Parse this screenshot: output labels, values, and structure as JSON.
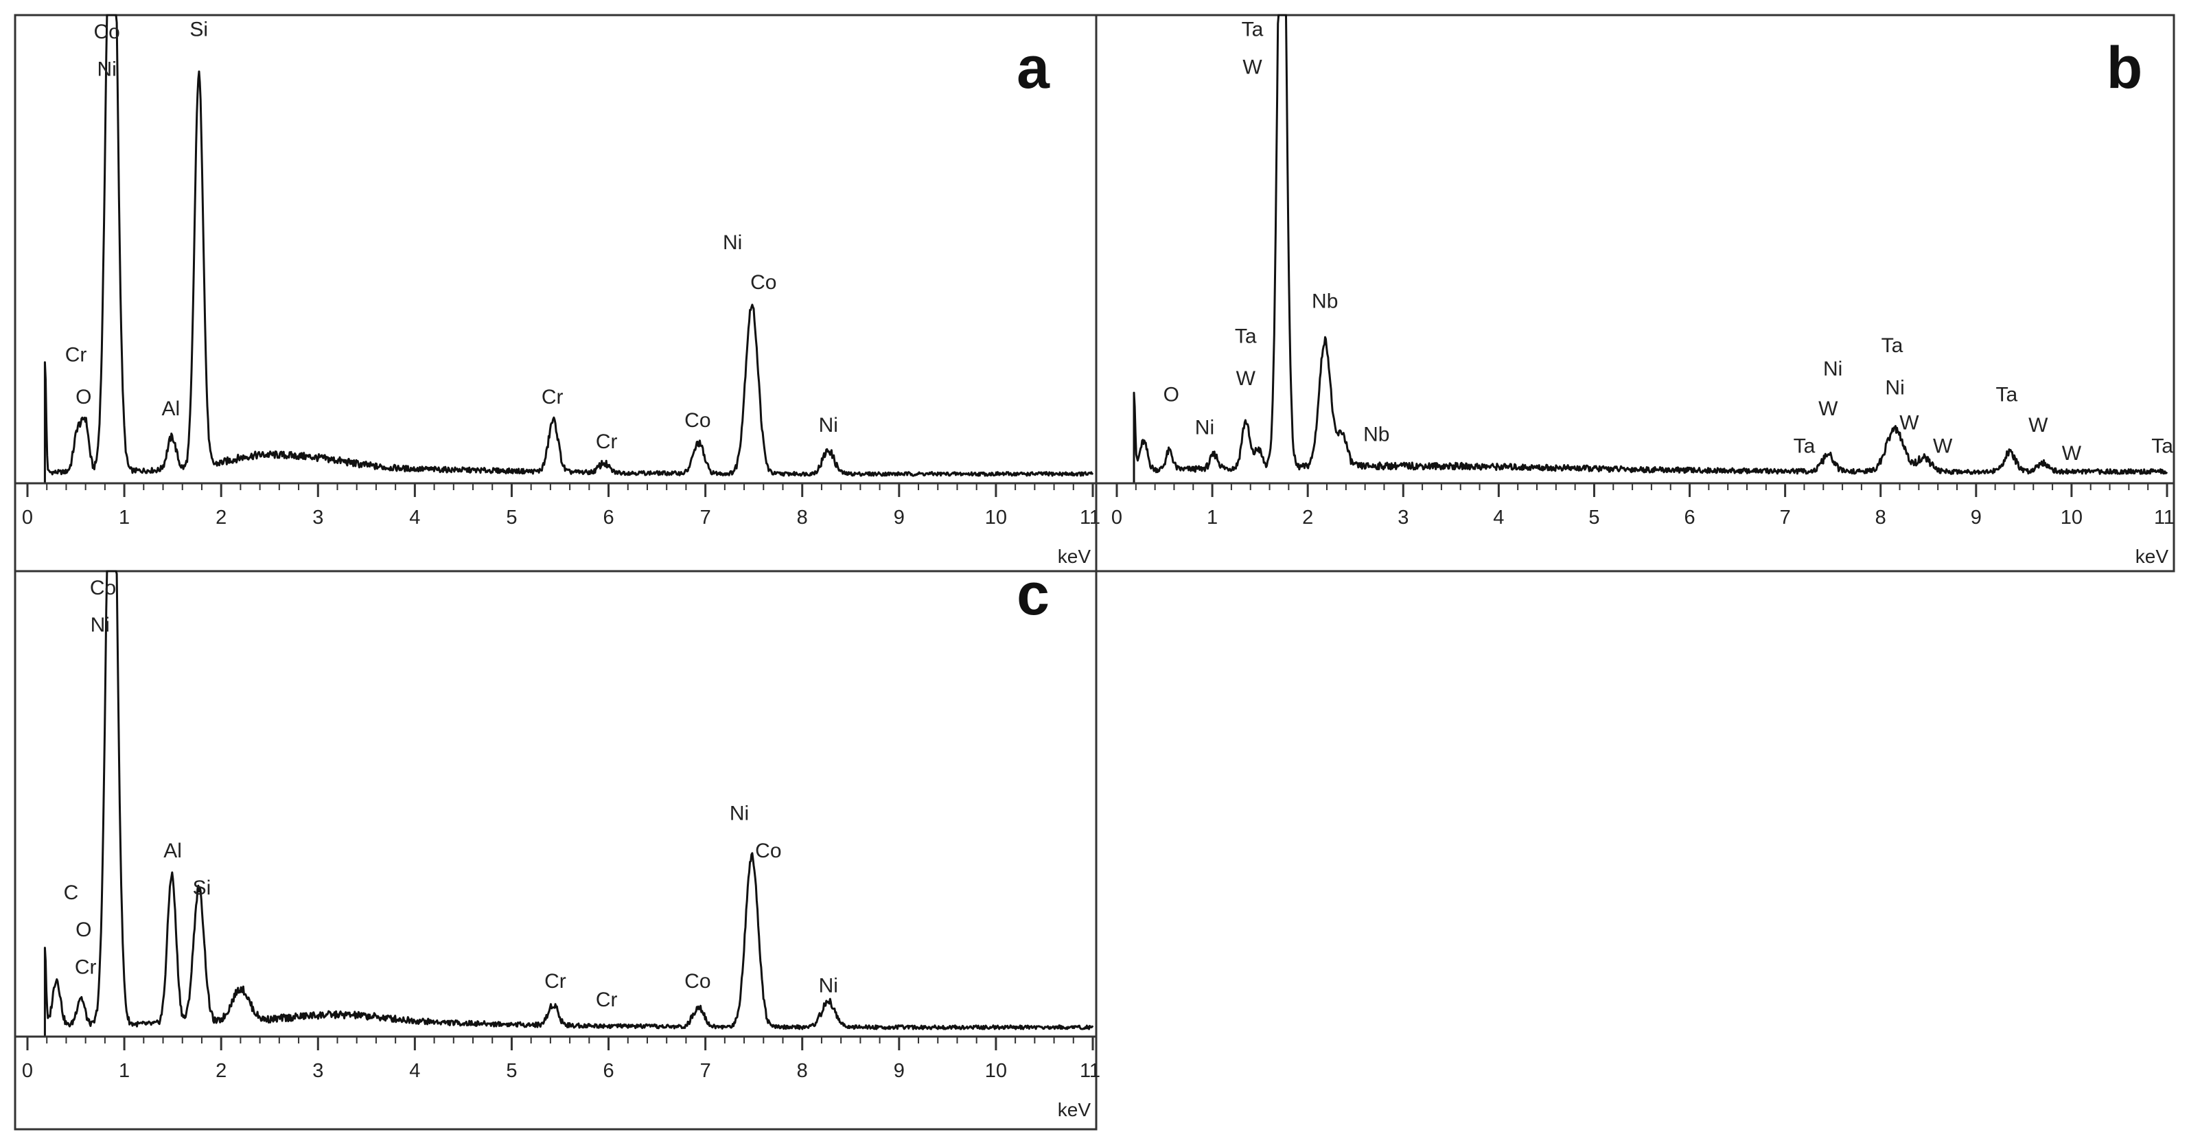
{
  "chart_data": [
    {
      "type": "line",
      "panel_letter": "a",
      "x_unit_label": "keV",
      "xlim": [
        0,
        11
      ],
      "x_ticks": [
        "0",
        "1",
        "2",
        "3",
        "4",
        "5",
        "6",
        "7",
        "8",
        "9",
        "10",
        "11"
      ],
      "y_scale": "relative counts (0 = baseline, 100 = top of frame)",
      "grid": false,
      "spectrum_start_kev": 0.18,
      "spectrum_end_kev": 11,
      "baseline_counts": 2,
      "peaks": [
        {
          "x": 0.18,
          "h": 24,
          "w": 0.012
        },
        {
          "x": 0.52,
          "h": 9,
          "w": 0.04
        },
        {
          "x": 0.6,
          "h": 10,
          "w": 0.035
        },
        {
          "x": 0.87,
          "h": 150,
          "w": 0.055
        },
        {
          "x": 1.49,
          "h": 7,
          "w": 0.045
        },
        {
          "x": 1.77,
          "h": 84,
          "w": 0.045
        },
        {
          "x": 2.3,
          "h": 2,
          "w": 0.3
        },
        {
          "x": 2.9,
          "h": 2.2,
          "w": 0.4
        },
        {
          "x": 5.43,
          "h": 11,
          "w": 0.05
        },
        {
          "x": 5.95,
          "h": 2,
          "w": 0.05
        },
        {
          "x": 6.93,
          "h": 6.5,
          "w": 0.055
        },
        {
          "x": 7.48,
          "h": 36,
          "w": 0.065
        },
        {
          "x": 8.27,
          "h": 5,
          "w": 0.06
        }
      ],
      "peak_labels": [
        {
          "text": "Co",
          "x": 0.82,
          "y": 95
        },
        {
          "text": "Ni",
          "x": 0.82,
          "y": 87
        },
        {
          "text": "Si",
          "x": 1.77,
          "y": 95.5
        },
        {
          "text": "Cr",
          "x": 0.5,
          "y": 26
        },
        {
          "text": "O",
          "x": 0.58,
          "y": 17
        },
        {
          "text": "Al",
          "x": 1.48,
          "y": 14.5
        },
        {
          "text": "Ni",
          "x": 7.28,
          "y": 50
        },
        {
          "text": "Co",
          "x": 7.6,
          "y": 41.5
        },
        {
          "text": "Cr",
          "x": 5.42,
          "y": 17
        },
        {
          "text": "Cr",
          "x": 5.98,
          "y": 7.5
        },
        {
          "text": "Co",
          "x": 6.92,
          "y": 12
        },
        {
          "text": "Ni",
          "x": 8.27,
          "y": 11
        }
      ]
    },
    {
      "type": "line",
      "panel_letter": "b",
      "x_unit_label": "keV",
      "xlim": [
        0,
        11
      ],
      "x_ticks": [
        "0",
        "1",
        "2",
        "3",
        "4",
        "5",
        "6",
        "7",
        "8",
        "9",
        "10",
        "11"
      ],
      "y_scale": "relative counts (0 = baseline, 100 = top of frame)",
      "grid": false,
      "spectrum_start_kev": 0.18,
      "spectrum_end_kev": 11,
      "baseline_counts": 2.5,
      "peaks": [
        {
          "x": 0.18,
          "h": 17,
          "w": 0.012
        },
        {
          "x": 0.28,
          "h": 6,
          "w": 0.04
        },
        {
          "x": 0.55,
          "h": 4,
          "w": 0.035
        },
        {
          "x": 1.02,
          "h": 3,
          "w": 0.04
        },
        {
          "x": 1.35,
          "h": 10,
          "w": 0.04
        },
        {
          "x": 1.48,
          "h": 4,
          "w": 0.04
        },
        {
          "x": 1.73,
          "h": 150,
          "w": 0.045
        },
        {
          "x": 2.18,
          "h": 27,
          "w": 0.06
        },
        {
          "x": 2.36,
          "h": 7,
          "w": 0.05
        },
        {
          "x": 7.45,
          "h": 3.5,
          "w": 0.06
        },
        {
          "x": 8.15,
          "h": 9,
          "w": 0.09
        },
        {
          "x": 8.45,
          "h": 3,
          "w": 0.07
        },
        {
          "x": 9.35,
          "h": 4,
          "w": 0.06
        },
        {
          "x": 9.7,
          "h": 2,
          "w": 0.06
        }
      ],
      "peak_labels": [
        {
          "text": "Ta",
          "x": 1.42,
          "y": 95.5
        },
        {
          "text": "W",
          "x": 1.42,
          "y": 87.5
        },
        {
          "text": "Nb",
          "x": 2.18,
          "y": 37.5
        },
        {
          "text": "Ta",
          "x": 1.35,
          "y": 30
        },
        {
          "text": "W",
          "x": 1.35,
          "y": 21
        },
        {
          "text": "O",
          "x": 0.57,
          "y": 17.5
        },
        {
          "text": "Ni",
          "x": 0.92,
          "y": 10.5
        },
        {
          "text": "Nb",
          "x": 2.72,
          "y": 9
        },
        {
          "text": "Ta",
          "x": 7.2,
          "y": 6.5
        },
        {
          "text": "Ni",
          "x": 7.5,
          "y": 23
        },
        {
          "text": "W",
          "x": 7.45,
          "y": 14.5
        },
        {
          "text": "Ta",
          "x": 8.12,
          "y": 28
        },
        {
          "text": "Ni",
          "x": 8.15,
          "y": 19
        },
        {
          "text": "W",
          "x": 8.3,
          "y": 11.5
        },
        {
          "text": "W",
          "x": 8.65,
          "y": 6.5
        },
        {
          "text": "Ta",
          "x": 9.32,
          "y": 17.5
        },
        {
          "text": "W",
          "x": 9.65,
          "y": 11
        },
        {
          "text": "W",
          "x": 10.0,
          "y": 5
        },
        {
          "text": "Ta",
          "x": 10.95,
          "y": 6.5
        }
      ]
    },
    {
      "type": "line",
      "panel_letter": "c",
      "x_unit_label": "keV",
      "xlim": [
        0,
        11
      ],
      "x_ticks": [
        "0",
        "1",
        "2",
        "3",
        "4",
        "5",
        "6",
        "7",
        "8",
        "9",
        "10",
        "11"
      ],
      "y_scale": "relative counts (0 = baseline, 100 = top of frame)",
      "grid": false,
      "spectrum_start_kev": 0.18,
      "spectrum_end_kev": 11,
      "baseline_counts": 2,
      "peaks": [
        {
          "x": 0.18,
          "h": 17,
          "w": 0.012
        },
        {
          "x": 0.3,
          "h": 10,
          "w": 0.04
        },
        {
          "x": 0.55,
          "h": 6,
          "w": 0.04
        },
        {
          "x": 0.87,
          "h": 150,
          "w": 0.055
        },
        {
          "x": 1.49,
          "h": 32,
          "w": 0.045
        },
        {
          "x": 1.77,
          "h": 29,
          "w": 0.055
        },
        {
          "x": 2.2,
          "h": 7,
          "w": 0.09
        },
        {
          "x": 3.2,
          "h": 1.5,
          "w": 0.5
        },
        {
          "x": 5.43,
          "h": 4.5,
          "w": 0.05
        },
        {
          "x": 6.93,
          "h": 4.5,
          "w": 0.055
        },
        {
          "x": 7.48,
          "h": 37,
          "w": 0.065
        },
        {
          "x": 8.27,
          "h": 5.5,
          "w": 0.07
        }
      ],
      "peak_labels": [
        {
          "text": "Co",
          "x": 0.78,
          "y": 95
        },
        {
          "text": "Ni",
          "x": 0.75,
          "y": 87
        },
        {
          "text": "Al",
          "x": 1.5,
          "y": 38.5
        },
        {
          "text": "Si",
          "x": 1.8,
          "y": 30.5
        },
        {
          "text": "C",
          "x": 0.45,
          "y": 29.5
        },
        {
          "text": "O",
          "x": 0.58,
          "y": 21.5
        },
        {
          "text": "Cr",
          "x": 0.6,
          "y": 13.5
        },
        {
          "text": "Ni",
          "x": 7.35,
          "y": 46.5
        },
        {
          "text": "Co",
          "x": 7.65,
          "y": 38.5
        },
        {
          "text": "Cr",
          "x": 5.45,
          "y": 10.5
        },
        {
          "text": "Cr",
          "x": 5.98,
          "y": 6.5
        },
        {
          "text": "Co",
          "x": 6.92,
          "y": 10.5
        },
        {
          "text": "Ni",
          "x": 8.27,
          "y": 9.5
        }
      ]
    }
  ]
}
